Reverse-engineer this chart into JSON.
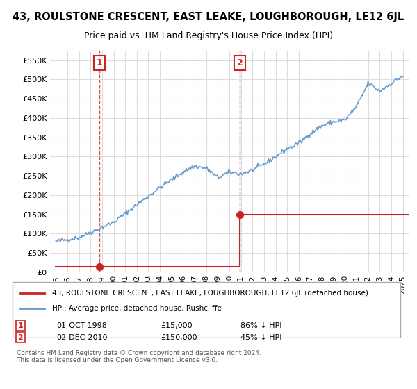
{
  "title": "43, ROULSTONE CRESCENT, EAST LEAKE, LOUGHBOROUGH, LE12 6JL",
  "subtitle": "Price paid vs. HM Land Registry's House Price Index (HPI)",
  "hpi_color": "#6699cc",
  "price_color": "#cc2222",
  "annotation_box_color": "#cc2222",
  "background_color": "#ffffff",
  "grid_color": "#dddddd",
  "sale1_date_x": 1998.75,
  "sale1_price": 15000,
  "sale1_label": "1",
  "sale1_text": "01-OCT-1998",
  "sale1_amount": "£15,000",
  "sale1_hpi": "86% ↓ HPI",
  "sale2_date_x": 2010.92,
  "sale2_price": 150000,
  "sale2_label": "2",
  "sale2_text": "02-DEC-2010",
  "sale2_amount": "£150,000",
  "sale2_hpi": "45% ↓ HPI",
  "legend_line1": "43, ROULSTONE CRESCENT, EAST LEAKE, LOUGHBOROUGH, LE12 6JL (detached house)",
  "legend_line2": "HPI: Average price, detached house, Rushcliffe",
  "footer": "Contains HM Land Registry data © Crown copyright and database right 2024.\nThis data is licensed under the Open Government Licence v3.0.",
  "ylim_min": 0,
  "ylim_max": 575000,
  "xlim_min": 1994.5,
  "xlim_max": 2025.5,
  "ytick_values": [
    0,
    50000,
    100000,
    150000,
    200000,
    250000,
    300000,
    350000,
    400000,
    450000,
    500000,
    550000
  ],
  "ytick_labels": [
    "£0",
    "£50K",
    "£100K",
    "£150K",
    "£200K",
    "£250K",
    "£300K",
    "£350K",
    "£400K",
    "£450K",
    "£500K",
    "£550K"
  ],
  "xtick_years": [
    1995,
    1996,
    1997,
    1998,
    1999,
    2000,
    2001,
    2002,
    2003,
    2004,
    2005,
    2006,
    2007,
    2008,
    2009,
    2010,
    2011,
    2012,
    2013,
    2014,
    2015,
    2016,
    2017,
    2018,
    2019,
    2020,
    2021,
    2022,
    2023,
    2024,
    2025
  ]
}
